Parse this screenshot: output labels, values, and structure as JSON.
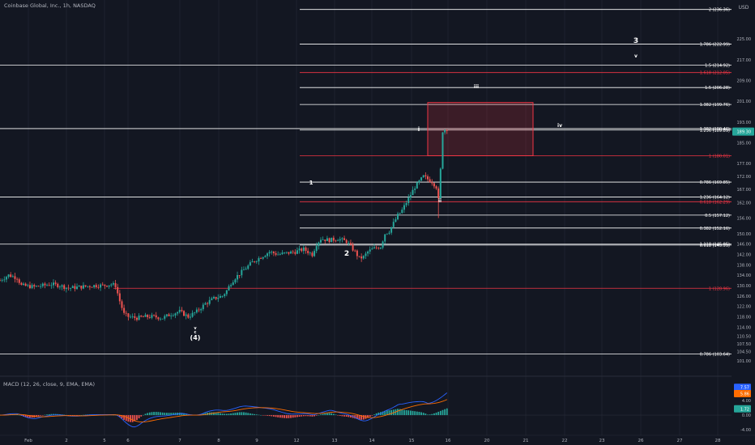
{
  "header": {
    "title": "Coinbase Global, Inc., 1h, NASDAQ"
  },
  "macd": {
    "title": "MACD (12, 26, close, 9, EMA, EMA)"
  },
  "price_scale": {
    "currency": "USD"
  },
  "chart_data": {
    "type": "candlestick",
    "symbol": "Coinbase Global, Inc.",
    "interval": "1h",
    "exchange": "NASDAQ",
    "price_axis": {
      "range": [
        96,
        240
      ],
      "ticks": [
        225.0,
        217.0,
        209.0,
        201.0,
        193.0,
        185.0,
        177.0,
        172.0,
        167.0,
        162.0,
        156.0,
        150.0,
        146.0,
        142.0,
        138.0,
        134.0,
        130.0,
        126.0,
        122.0,
        118.0,
        114.0,
        110.5,
        107.5,
        104.5,
        101.0
      ]
    },
    "time_axis": {
      "ticks": [
        "Feb",
        "2",
        "5",
        "6",
        "7",
        "8",
        "9",
        "12",
        "13",
        "14",
        "15",
        "16",
        "20",
        "21",
        "22",
        "23",
        "26",
        "27",
        "28"
      ]
    },
    "last_price": "189.30",
    "trend_path": [
      [
        0,
        132
      ],
      [
        4,
        134
      ],
      [
        8,
        133
      ],
      [
        10,
        130
      ],
      [
        16,
        129.5
      ],
      [
        20,
        130
      ],
      [
        24,
        130.5
      ],
      [
        28,
        130
      ],
      [
        32,
        129
      ],
      [
        38,
        129.5
      ],
      [
        44,
        130
      ],
      [
        48,
        130
      ],
      [
        52,
        130.5
      ],
      [
        54,
        130
      ],
      [
        56,
        124
      ],
      [
        58,
        119
      ],
      [
        60,
        118
      ],
      [
        64,
        117.5
      ],
      [
        68,
        118
      ],
      [
        72,
        118
      ],
      [
        76,
        117.5
      ],
      [
        80,
        119
      ],
      [
        84,
        120
      ],
      [
        86,
        119
      ],
      [
        88,
        118
      ],
      [
        92,
        120
      ],
      [
        96,
        123
      ],
      [
        100,
        125
      ],
      [
        104,
        126
      ],
      [
        106,
        128
      ],
      [
        108,
        131
      ],
      [
        110,
        133
      ],
      [
        114,
        136
      ],
      [
        118,
        139
      ],
      [
        122,
        141
      ],
      [
        124,
        142
      ],
      [
        126,
        143
      ],
      [
        130,
        142
      ],
      [
        134,
        142.5
      ],
      [
        138,
        143
      ],
      [
        142,
        144
      ],
      [
        146,
        142
      ],
      [
        148,
        146
      ],
      [
        150,
        148
      ],
      [
        154,
        147.5
      ],
      [
        158,
        148
      ],
      [
        162,
        147
      ],
      [
        164,
        145
      ],
      [
        166,
        143
      ],
      [
        168,
        140.5
      ],
      [
        170,
        141
      ],
      [
        172,
        143
      ],
      [
        174,
        144
      ],
      [
        176,
        144.5
      ],
      [
        178,
        145
      ],
      [
        180,
        150
      ],
      [
        182,
        151
      ],
      [
        184,
        154
      ],
      [
        186,
        157
      ],
      [
        188,
        159
      ],
      [
        190,
        162
      ],
      [
        192,
        165
      ],
      [
        194,
        168
      ],
      [
        196,
        170
      ],
      [
        198,
        172
      ],
      [
        200,
        171
      ],
      [
        202,
        170
      ],
      [
        204,
        168
      ],
      [
        205,
        163
      ],
      [
        206,
        175
      ],
      [
        207,
        189
      ],
      [
        208,
        190
      ],
      [
        209,
        190.5
      ]
    ],
    "fib_levels": [
      {
        "label": "2 (236.36)",
        "price": 236.36,
        "color": "#ffffff"
      },
      {
        "label": "1.786 (222.99)",
        "price": 222.99,
        "color": "#ffffff"
      },
      {
        "label": "1.5 (214.92)",
        "price": 214.92,
        "color": "#ffffff"
      },
      {
        "label": "1.618 (212.05)",
        "price": 212.05,
        "color": "#f23645"
      },
      {
        "label": "1.5 (206.28)",
        "price": 206.28,
        "color": "#ffffff"
      },
      {
        "label": "1.382 (199.76)",
        "price": 199.76,
        "color": "#ffffff"
      },
      {
        "label": "1.382 (190.46)",
        "price": 190.46,
        "color": "#ffffff"
      },
      {
        "label": "1.236 (189.89)",
        "price": 189.89,
        "color": "#ffffff"
      },
      {
        "label": "1 (180.01)",
        "price": 180.01,
        "color": "#f23645"
      },
      {
        "label": "0.786 (169.85)",
        "price": 169.85,
        "color": "#ffffff"
      },
      {
        "label": "1.236 (164.12)",
        "price": 164.12,
        "color": "#ffffff"
      },
      {
        "label": "0.618 (162.29)",
        "price": 162.29,
        "color": "#f23645"
      },
      {
        "label": "0.5 (157.12)",
        "price": 157.12,
        "color": "#ffffff"
      },
      {
        "label": "0.382 (152.16)",
        "price": 152.16,
        "color": "#ffffff"
      },
      {
        "label": "1.118 (145.95)",
        "price": 145.95,
        "color": "#ffffff"
      },
      {
        "label": "0.618 (145.59)",
        "price": 145.59,
        "color": "#ffffff"
      },
      {
        "label": "1 (128.96)",
        "price": 128.96,
        "color": "#f23645"
      },
      {
        "label": "0.786 (103.64)",
        "price": 103.64,
        "color": "#ffffff"
      }
    ],
    "wave_labels": [
      "3",
      "v",
      "iii",
      "i",
      "iv",
      "1",
      "ii",
      "2",
      "v",
      "c",
      "(4)"
    ],
    "projection_box": {
      "from_price": 200.5,
      "to_price": 180.0
    },
    "macd_panel": {
      "title": "MACD (12, 26, close, 9, EMA, EMA)",
      "ticks": [
        "4.00",
        "0.00",
        "-4.00"
      ],
      "range": [
        -5.5,
        9.5
      ],
      "values": {
        "macd": "7.57",
        "signal": "5.86",
        "histogram": "1.72"
      }
    },
    "colors": {
      "up": "#26a69a",
      "down": "#ef5350",
      "macd": "#2962ff",
      "signal": "#ff6d00",
      "fib_white": "#ffffff",
      "fib_red": "#f23645",
      "background": "#131722"
    }
  }
}
